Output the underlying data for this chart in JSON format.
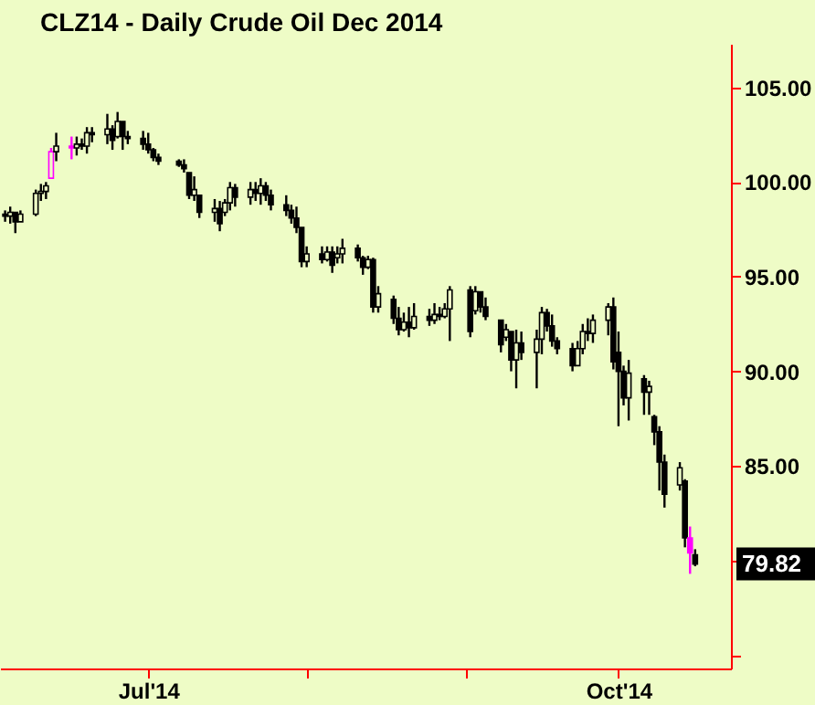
{
  "chart_data": {
    "type": "candlestick",
    "title": "CLZ14 - Daily  Crude Oil Dec 2014",
    "x": [
      "2014-06-03",
      "2014-06-04",
      "2014-06-05",
      "2014-06-06",
      "2014-06-09",
      "2014-06-10",
      "2014-06-11",
      "2014-06-12",
      "2014-06-13",
      "2014-06-16",
      "2014-06-17",
      "2014-06-18",
      "2014-06-19",
      "2014-06-20",
      "2014-06-23",
      "2014-06-24",
      "2014-06-25",
      "2014-06-26",
      "2014-06-27",
      "2014-06-30",
      "2014-07-01",
      "2014-07-02",
      "2014-07-03",
      "2014-07-07",
      "2014-07-08",
      "2014-07-09",
      "2014-07-10",
      "2014-07-11",
      "2014-07-14",
      "2014-07-15",
      "2014-07-16",
      "2014-07-17",
      "2014-07-18",
      "2014-07-21",
      "2014-07-22",
      "2014-07-23",
      "2014-07-24",
      "2014-07-25",
      "2014-07-28",
      "2014-07-29",
      "2014-07-30",
      "2014-07-31",
      "2014-08-01",
      "2014-08-04",
      "2014-08-05",
      "2014-08-06",
      "2014-08-07",
      "2014-08-08",
      "2014-08-11",
      "2014-08-12",
      "2014-08-13",
      "2014-08-14",
      "2014-08-15",
      "2014-08-18",
      "2014-08-19",
      "2014-08-20",
      "2014-08-21",
      "2014-08-22",
      "2014-08-25",
      "2014-08-26",
      "2014-08-27",
      "2014-08-28",
      "2014-08-29",
      "2014-09-02",
      "2014-09-03",
      "2014-09-04",
      "2014-09-05",
      "2014-09-08",
      "2014-09-09",
      "2014-09-10",
      "2014-09-11",
      "2014-09-12",
      "2014-09-15",
      "2014-09-16",
      "2014-09-17",
      "2014-09-18",
      "2014-09-19",
      "2014-09-22",
      "2014-09-23",
      "2014-09-24",
      "2014-09-25",
      "2014-09-26",
      "2014-09-29",
      "2014-09-30",
      "2014-10-01",
      "2014-10-02",
      "2014-10-03",
      "2014-10-06",
      "2014-10-07",
      "2014-10-08",
      "2014-10-09",
      "2014-10-10",
      "2014-10-13",
      "2014-10-14",
      "2014-10-15",
      "2014-10-16"
    ],
    "ohlc": [
      [
        98.3,
        98.5,
        97.9,
        98.2
      ],
      [
        98.2,
        98.7,
        97.8,
        98.4
      ],
      [
        98.4,
        98.4,
        97.3,
        97.9
      ],
      [
        97.9,
        98.5,
        97.9,
        98.3
      ],
      [
        98.3,
        99.6,
        98.2,
        99.4
      ],
      [
        99.4,
        99.9,
        99.0,
        99.5
      ],
      [
        99.5,
        100.0,
        99.1,
        99.8
      ],
      [
        100.2,
        101.8,
        100.2,
        101.6
      ],
      [
        101.6,
        102.6,
        101.1,
        101.9
      ],
      [
        101.9,
        102.4,
        101.2,
        101.8
      ],
      [
        101.8,
        102.4,
        101.4,
        102.0
      ],
      [
        102.0,
        102.3,
        101.7,
        101.9
      ],
      [
        101.9,
        102.9,
        101.5,
        102.6
      ],
      [
        102.6,
        102.9,
        102.1,
        102.5
      ],
      [
        102.5,
        103.6,
        102.0,
        102.8
      ],
      [
        102.8,
        103.0,
        101.7,
        102.2
      ],
      [
        102.4,
        103.7,
        102.3,
        103.2
      ],
      [
        103.2,
        103.2,
        101.7,
        102.4
      ],
      [
        102.4,
        102.7,
        102.0,
        102.3
      ],
      [
        102.3,
        102.7,
        101.7,
        102.0
      ],
      [
        102.0,
        102.6,
        101.5,
        101.7
      ],
      [
        101.7,
        101.8,
        101.1,
        101.3
      ],
      [
        101.3,
        101.5,
        100.9,
        101.1
      ],
      [
        101.1,
        101.2,
        100.8,
        100.9
      ],
      [
        100.9,
        101.2,
        100.5,
        100.7
      ],
      [
        100.5,
        100.5,
        99.1,
        99.3
      ],
      [
        99.3,
        100.3,
        99.0,
        99.6
      ],
      [
        99.3,
        99.3,
        98.1,
        98.4
      ],
      [
        98.4,
        99.1,
        97.9,
        98.6
      ],
      [
        98.6,
        99.0,
        97.4,
        97.8
      ],
      [
        98.4,
        99.1,
        98.2,
        98.9
      ],
      [
        98.9,
        100.0,
        98.5,
        99.7
      ],
      [
        99.7,
        99.9,
        98.7,
        99.2
      ],
      [
        99.2,
        100.0,
        98.8,
        99.6
      ],
      [
        99.6,
        100.0,
        99.0,
        99.4
      ],
      [
        99.4,
        100.2,
        98.8,
        99.8
      ],
      [
        99.8,
        100.0,
        99.0,
        99.3
      ],
      [
        99.3,
        99.6,
        98.5,
        98.8
      ],
      [
        98.8,
        99.3,
        98.2,
        98.5
      ],
      [
        98.5,
        98.8,
        97.8,
        98.1
      ],
      [
        98.1,
        98.7,
        97.3,
        97.6
      ],
      [
        97.6,
        97.6,
        95.5,
        95.8
      ],
      [
        95.8,
        96.6,
        95.5,
        96.2
      ],
      [
        96.2,
        96.6,
        95.7,
        95.9
      ],
      [
        95.9,
        96.6,
        95.8,
        96.3
      ],
      [
        96.3,
        96.6,
        95.2,
        95.6
      ],
      [
        96.0,
        96.6,
        95.7,
        96.2
      ],
      [
        96.2,
        97.0,
        95.7,
        96.5
      ],
      [
        96.5,
        96.7,
        95.8,
        96.0
      ],
      [
        96.0,
        96.1,
        95.1,
        95.5
      ],
      [
        95.5,
        96.1,
        95.4,
        95.9
      ],
      [
        95.9,
        96.0,
        93.1,
        93.4
      ],
      [
        93.4,
        94.5,
        93.1,
        94.1
      ],
      [
        93.8,
        94.0,
        92.5,
        92.8
      ],
      [
        92.8,
        93.4,
        91.9,
        92.2
      ],
      [
        92.2,
        93.1,
        92.1,
        92.6
      ],
      [
        92.6,
        93.4,
        91.8,
        92.3
      ],
      [
        92.3,
        93.6,
        92.2,
        92.9
      ],
      [
        92.9,
        93.3,
        92.4,
        92.7
      ],
      [
        92.7,
        93.6,
        92.5,
        93.0
      ],
      [
        93.0,
        93.4,
        92.7,
        92.9
      ],
      [
        92.9,
        93.6,
        92.8,
        93.3
      ],
      [
        93.3,
        94.5,
        91.6,
        94.3
      ],
      [
        94.3,
        94.5,
        91.8,
        92.1
      ],
      [
        93.2,
        94.5,
        93.0,
        94.2
      ],
      [
        94.2,
        94.2,
        93.1,
        93.4
      ],
      [
        93.4,
        93.9,
        92.7,
        92.9
      ],
      [
        92.7,
        92.7,
        91.0,
        91.4
      ],
      [
        91.8,
        92.5,
        91.6,
        92.2
      ],
      [
        92.1,
        92.1,
        90.0,
        90.6
      ],
      [
        90.6,
        92.2,
        89.1,
        91.5
      ],
      [
        91.5,
        92.1,
        90.6,
        91.0
      ],
      [
        91.0,
        92.2,
        89.1,
        91.7
      ],
      [
        91.7,
        93.4,
        90.9,
        93.1
      ],
      [
        93.1,
        93.3,
        92.1,
        92.4
      ],
      [
        92.4,
        93.0,
        91.3,
        91.6
      ],
      [
        91.6,
        91.8,
        90.9,
        91.2
      ],
      [
        91.2,
        91.5,
        90.0,
        90.3
      ],
      [
        90.3,
        91.6,
        90.3,
        91.2
      ],
      [
        91.2,
        92.5,
        90.9,
        92.1
      ],
      [
        92.1,
        92.8,
        91.6,
        92.0
      ],
      [
        92.0,
        93.0,
        91.5,
        92.7
      ],
      [
        92.7,
        93.6,
        91.9,
        93.4
      ],
      [
        93.4,
        93.9,
        90.1,
        90.5
      ],
      [
        91.0,
        92.1,
        87.1,
        90.0
      ],
      [
        90.0,
        90.3,
        88.2,
        88.6
      ],
      [
        88.6,
        90.6,
        87.4,
        89.9
      ],
      [
        89.6,
        89.8,
        87.7,
        88.9
      ],
      [
        88.9,
        89.5,
        87.7,
        89.2
      ],
      [
        87.6,
        87.7,
        86.1,
        86.8
      ],
      [
        86.8,
        87.1,
        83.7,
        85.2
      ],
      [
        85.2,
        85.6,
        82.8,
        83.5
      ],
      [
        84.0,
        85.2,
        83.7,
        84.9
      ],
      [
        84.2,
        84.3,
        80.7,
        81.2
      ],
      [
        81.2,
        81.8,
        79.3,
        80.4
      ],
      [
        80.3,
        80.6,
        79.7,
        79.82
      ]
    ],
    "colors": [
      "#000000",
      "#000000",
      "#000000",
      "#000000",
      "#000000",
      "#000000",
      "#000000",
      "#ff00ff",
      "#000000",
      "#ff00ff",
      "#000000",
      "#000000",
      "#000000",
      "#000000",
      "#000000",
      "#000000",
      "#000000",
      "#000000",
      "#000000",
      "#000000",
      "#000000",
      "#000000",
      "#000000",
      "#000000",
      "#000000",
      "#000000",
      "#000000",
      "#000000",
      "#000000",
      "#000000",
      "#000000",
      "#000000",
      "#000000",
      "#000000",
      "#000000",
      "#000000",
      "#000000",
      "#000000",
      "#000000",
      "#000000",
      "#000000",
      "#000000",
      "#000000",
      "#000000",
      "#000000",
      "#000000",
      "#000000",
      "#000000",
      "#000000",
      "#000000",
      "#000000",
      "#000000",
      "#000000",
      "#000000",
      "#000000",
      "#000000",
      "#000000",
      "#000000",
      "#000000",
      "#000000",
      "#000000",
      "#000000",
      "#000000",
      "#000000",
      "#000000",
      "#000000",
      "#000000",
      "#000000",
      "#000000",
      "#000000",
      "#000000",
      "#000000",
      "#000000",
      "#000000",
      "#000000",
      "#000000",
      "#000000",
      "#000000",
      "#000000",
      "#000000",
      "#000000",
      "#000000",
      "#000000",
      "#000000",
      "#000000",
      "#000000",
      "#000000",
      "#000000",
      "#000000",
      "#000000",
      "#000000",
      "#000000",
      "#000000",
      "#000000",
      "#ff00ff",
      "#000000"
    ],
    "xlim": [
      "2014-06-02",
      "2014-10-23"
    ],
    "xticks": [
      {
        "value": "2014-07-01",
        "label": "Jul'14"
      },
      {
        "value": "2014-08-01",
        "label": null
      },
      {
        "value": "2014-09-01",
        "label": null
      },
      {
        "value": "2014-10-01",
        "label": "Oct'14"
      }
    ],
    "ylim": [
      74.3,
      107.3
    ],
    "yticks": [
      {
        "value": 75,
        "label": null
      },
      {
        "value": 80,
        "label": null
      },
      {
        "value": 85,
        "label": "85.00"
      },
      {
        "value": 90,
        "label": "90.00"
      },
      {
        "value": 95,
        "label": "95.00"
      },
      {
        "value": 100,
        "label": "100.00"
      },
      {
        "value": 105,
        "label": "105.00"
      }
    ],
    "annotations": [
      "79.82"
    ]
  }
}
